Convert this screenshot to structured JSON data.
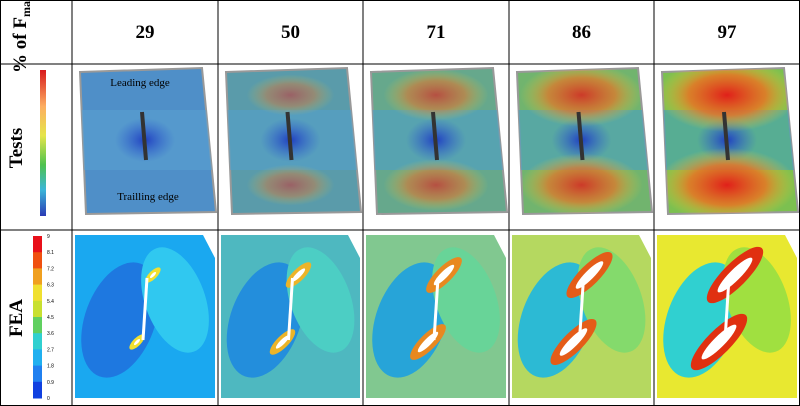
{
  "header": {
    "label": "% of F",
    "label_subscript": "max",
    "columns": [
      29,
      50,
      71,
      86,
      97
    ]
  },
  "rows": [
    {
      "label": "Tests",
      "annotations": [
        "Leading edge",
        "Trailling edge"
      ]
    },
    {
      "label": "FEA",
      "colorbar_ticks": [
        "9",
        "8.1",
        "7.2",
        "6.3",
        "5.4",
        "4.5",
        "3.6",
        "2.7",
        "1.8",
        "0.9",
        "0"
      ]
    }
  ]
}
